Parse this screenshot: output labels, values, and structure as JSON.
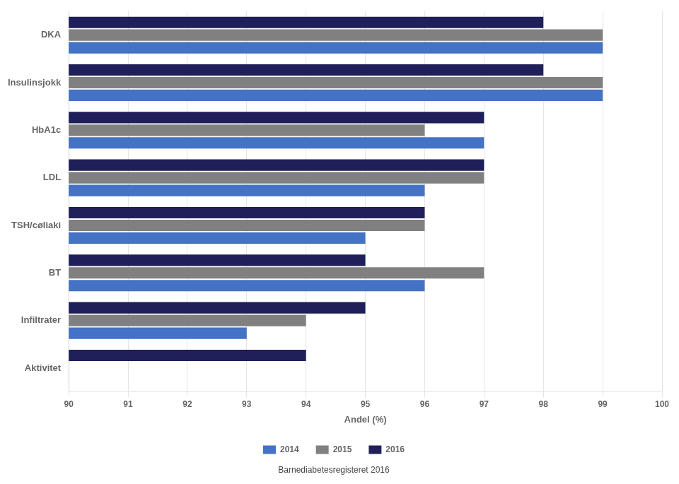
{
  "chart_data": {
    "type": "bar",
    "orientation": "horizontal",
    "categories": [
      "Aktivitet",
      "Infiltrater",
      "BT",
      "TSH/cøliaki",
      "LDL",
      "HbA1c",
      "Insulinsjokk",
      "DKA"
    ],
    "series": [
      {
        "name": "2014",
        "color": "#4472C4",
        "values": [
          null,
          93.0,
          96.0,
          95.0,
          96.0,
          97.0,
          99.0,
          99.0
        ]
      },
      {
        "name": "2015",
        "color": "#808080",
        "values": [
          null,
          94.0,
          97.0,
          96.0,
          97.0,
          96.0,
          99.0,
          99.0
        ]
      },
      {
        "name": "2016",
        "color": "#1F1F5A",
        "values": [
          94.0,
          95.0,
          95.0,
          96.0,
          97.0,
          97.0,
          98.0,
          98.0
        ]
      }
    ],
    "xlabel": "Andel (%)",
    "xlim": [
      90,
      100
    ],
    "xticks": [
      90,
      91,
      92,
      93,
      94,
      95,
      96,
      97,
      98,
      99,
      100
    ],
    "grid": true,
    "legend": "bottom",
    "annotations": [
      "Barnediabetesregisteret 2016"
    ]
  }
}
